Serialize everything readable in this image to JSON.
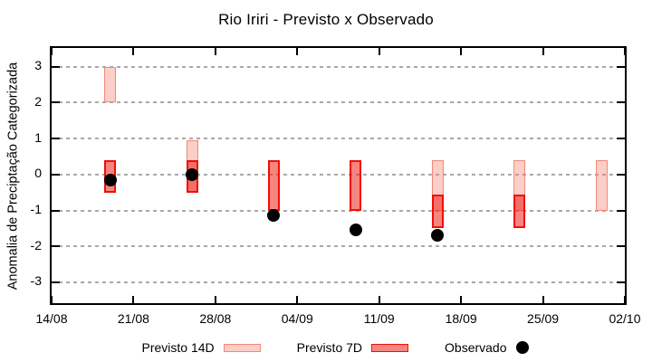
{
  "title": "Rio Iriri - Previsto x Observado",
  "legend": {
    "items": [
      {
        "label": "Previsto 14D",
        "swatch": "pink-range-box"
      },
      {
        "label": "Previsto 7D",
        "swatch": "red-range-box"
      },
      {
        "label": "Observado",
        "swatch": "black-dot"
      }
    ]
  },
  "colors": {
    "previsto14_fill": "rgba(243,120,100,0.36)",
    "previsto14_border": "#f0897b",
    "previsto7_fill": "rgba(240,32,22,0.55)",
    "previsto7_border": "#ee1009",
    "observado": "#000000",
    "grid": "#a9a9a9",
    "axis": "#000000"
  },
  "chart_data": {
    "type": "bar",
    "subtype": "range-bars-with-scatter",
    "title": "Rio Iriri - Previsto x Observado",
    "xlabel": "",
    "ylabel": "Anomalia de Preciptação Categorizada",
    "ylim": [
      -3.58,
      3.52
    ],
    "yticks": [
      3,
      2,
      1,
      0,
      -1,
      -2,
      -3
    ],
    "grid": true,
    "legend_position": "below",
    "x_axis": {
      "tick_labels": [
        "14/08",
        "21/08",
        "28/08",
        "04/09",
        "11/09",
        "18/09",
        "25/09",
        "02/10"
      ],
      "tick_days": [
        0,
        7,
        14,
        21,
        28,
        35,
        42,
        49
      ],
      "span_days": 49
    },
    "series": [
      {
        "name": "Previsto 14D",
        "type": "range-bar",
        "points": [
          {
            "date": "19/08",
            "day": 5,
            "low": 2.0,
            "high": 3.0
          },
          {
            "date": "26/08",
            "day": 12,
            "low": -0.5,
            "high": 0.95
          },
          {
            "date": "16/09",
            "day": 33,
            "low": -1.0,
            "high": 0.4
          },
          {
            "date": "23/09",
            "day": 40,
            "low": -1.0,
            "high": 0.4
          },
          {
            "date": "30/09",
            "day": 47,
            "low": -1.0,
            "high": 0.4
          }
        ]
      },
      {
        "name": "Previsto 7D",
        "type": "range-bar",
        "points": [
          {
            "date": "19/08",
            "day": 5,
            "low": -0.5,
            "high": 0.4
          },
          {
            "date": "26/08",
            "day": 12,
            "low": -0.5,
            "high": 0.4
          },
          {
            "date": "02/09",
            "day": 19,
            "low": -1.0,
            "high": 0.4
          },
          {
            "date": "09/09",
            "day": 26,
            "low": -1.0,
            "high": 0.4
          },
          {
            "date": "16/09",
            "day": 33,
            "low": -1.5,
            "high": -0.55
          },
          {
            "date": "23/09",
            "day": 40,
            "low": -1.5,
            "high": -0.55
          }
        ]
      },
      {
        "name": "Observado",
        "type": "scatter",
        "points": [
          {
            "date": "19/08",
            "day": 5,
            "value": -0.15
          },
          {
            "date": "26/08",
            "day": 12,
            "value": 0.0
          },
          {
            "date": "02/09",
            "day": 19,
            "value": -1.15
          },
          {
            "date": "09/09",
            "day": 26,
            "value": -1.55
          },
          {
            "date": "16/09",
            "day": 33,
            "value": -1.7
          }
        ]
      }
    ]
  }
}
